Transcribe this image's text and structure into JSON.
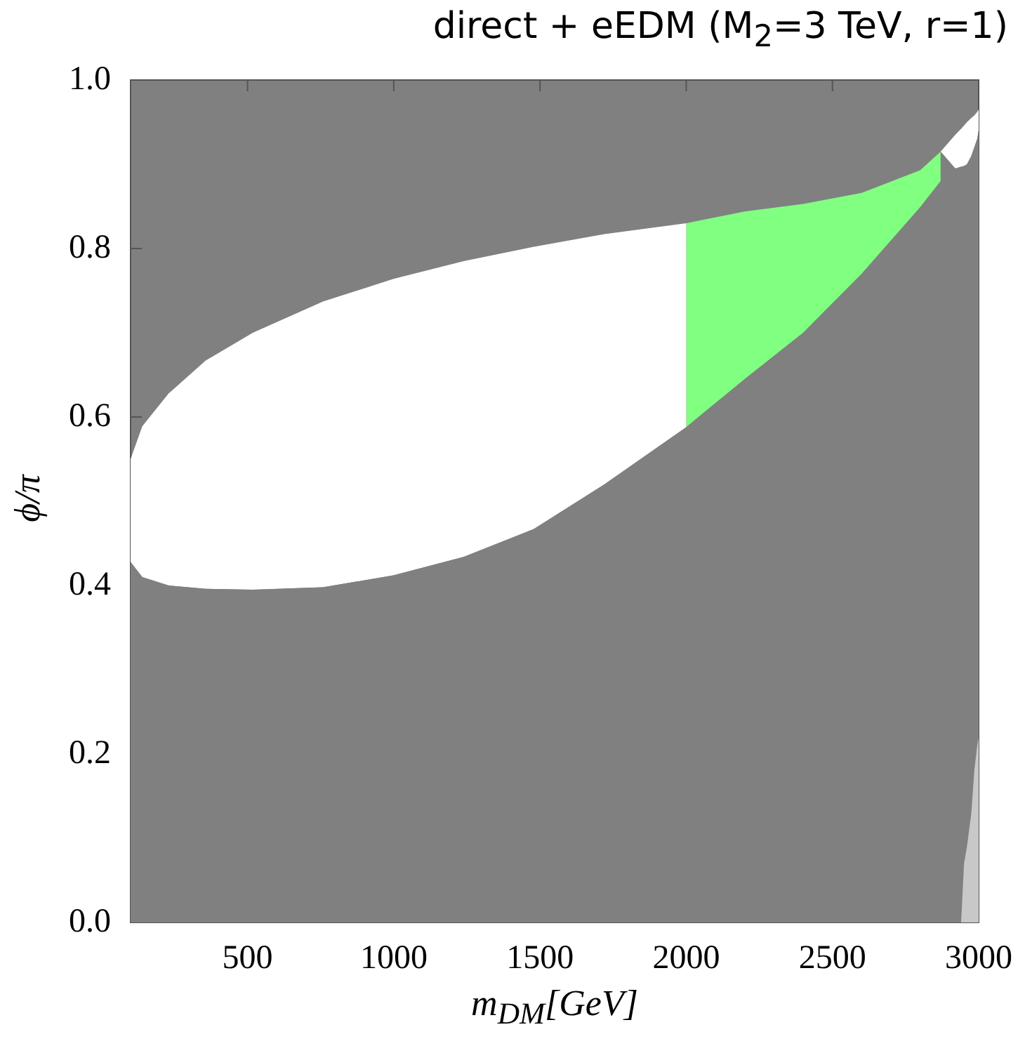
{
  "chart_data": {
    "type": "area",
    "stacked": true,
    "title": "direct + eEDM (M$_{2}$=3 TeV, r=1)",
    "xlabel": "m$_{DM}$[GeV]",
    "ylabel": "ϕ/π",
    "xlim": [
      100,
      3000
    ],
    "xticks": [
      500,
      1000,
      1500,
      2000,
      2500,
      3000
    ],
    "ylim": [
      0,
      1
    ],
    "yticks": [
      {
        "value": 0,
        "label": "0.0"
      },
      {
        "value": 0.2,
        "label": "0.2"
      },
      {
        "value": 0.4,
        "label": "0.4"
      },
      {
        "value": 0.6,
        "label": "0.6"
      },
      {
        "value": 0.8,
        "label": "0.8"
      },
      {
        "value": 1,
        "label": "1.0"
      }
    ],
    "bands": [
      {
        "axis": "y",
        "from": 0,
        "to": 1,
        "color": "#808080"
      }
    ],
    "x": [
      100,
      140,
      230,
      357,
      518,
      758,
      999,
      1239,
      1479,
      1720,
      2000,
      2000,
      2200,
      2400,
      2600,
      2800,
      2870,
      2870,
      2920,
      2940,
      2950,
      2960,
      2975,
      2985,
      2995,
      3000
    ],
    "series": [
      {
        "color": "#c8c8c8",
        "values": [
          0,
          0,
          0,
          0,
          0,
          0,
          0,
          0,
          0,
          0,
          0,
          0,
          0,
          0,
          0,
          0,
          0,
          0,
          0,
          0,
          0.07,
          0.09,
          0.13,
          0.18,
          0.21,
          0.22
        ]
      },
      {
        "color": "#808080",
        "values": [
          0.428,
          0.41,
          0.4,
          0.396,
          0.395,
          0.398,
          0.412,
          0.434,
          0.467,
          0.52,
          0.588,
          0.588,
          0.645,
          0.7,
          0.77,
          0.849,
          0.88,
          0.915,
          0.895,
          0.897,
          0.828,
          0.81,
          0.78,
          0.74,
          0.72,
          0.72
        ]
      },
      {
        "color": "#ffffff",
        "values": [
          0.122,
          0.179,
          0.228,
          0.271,
          0.305,
          0.339,
          0.352,
          0.351,
          0.335,
          0.297,
          0.242,
          0,
          0,
          0,
          0,
          0,
          0,
          0,
          0.04,
          0.045,
          0.048,
          0.05,
          0.045,
          0.038,
          0.032,
          0.025
        ]
      },
      {
        "color": "#80ff80",
        "values": [
          0,
          0,
          0,
          0,
          0,
          0,
          0,
          0,
          0,
          0,
          0,
          0.242,
          0.199,
          0.153,
          0.096,
          0.044,
          0.035,
          0,
          0,
          0,
          0,
          0,
          0,
          0,
          0,
          0
        ]
      }
    ]
  }
}
